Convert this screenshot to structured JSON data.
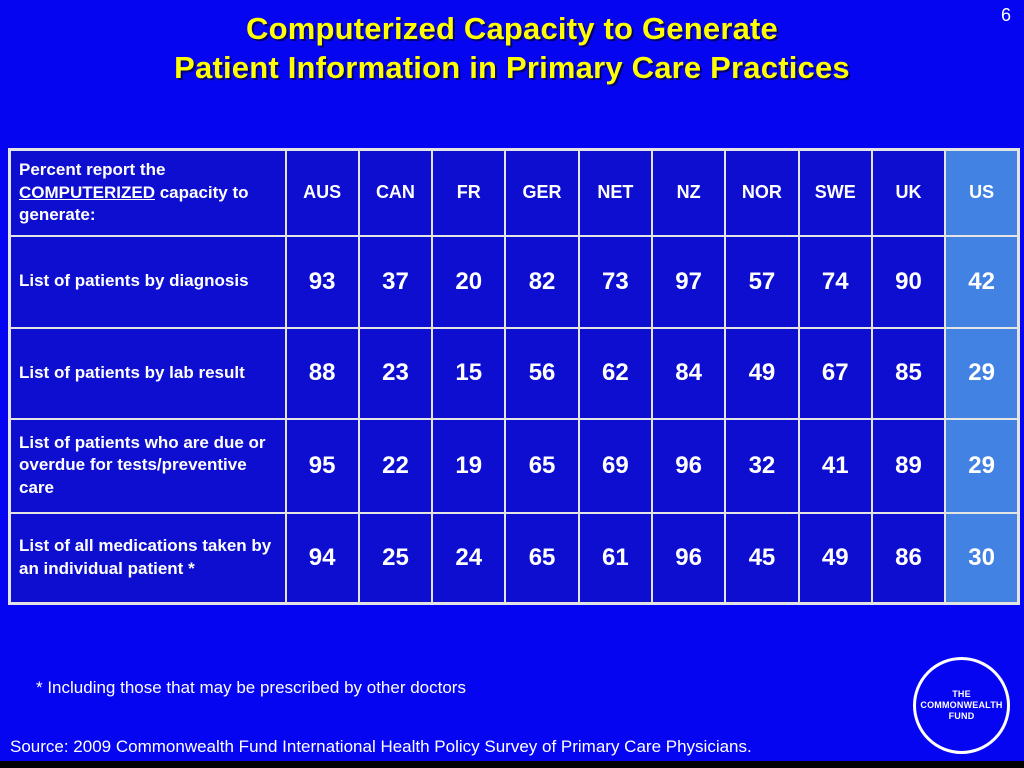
{
  "page_number": "6",
  "title": {
    "line1": "Computerized Capacity to Generate",
    "line2": "Patient Information in Primary Care Practices"
  },
  "table": {
    "caption": {
      "part1": "Percent report the ",
      "underlined": "COMPUTERIZED",
      "part2": " capacity to generate:"
    },
    "columns": [
      "AUS",
      "CAN",
      "FR",
      "GER",
      "NET",
      "NZ",
      "NOR",
      "SWE",
      "UK",
      "US"
    ],
    "rows": [
      {
        "label": "List of patients by diagnosis",
        "values": [
          "93",
          "37",
          "20",
          "82",
          "73",
          "97",
          "57",
          "74",
          "90",
          "42"
        ]
      },
      {
        "label": "List of patients by lab result",
        "values": [
          "88",
          "23",
          "15",
          "56",
          "62",
          "84",
          "49",
          "67",
          "85",
          "29"
        ]
      },
      {
        "label": "List of patients who are due or overdue for tests/preventive care",
        "values": [
          "95",
          "22",
          "19",
          "65",
          "69",
          "96",
          "32",
          "41",
          "89",
          "29"
        ]
      },
      {
        "label": "List of all medications taken by an individual patient *",
        "values": [
          "94",
          "25",
          "24",
          "65",
          "61",
          "96",
          "45",
          "49",
          "86",
          "30"
        ]
      }
    ],
    "highlighted_column": "US"
  },
  "footnote": "* Including those that may be prescribed by other doctors",
  "source": "Source: 2009 Commonwealth Fund International Health Policy Survey of Primary Care Physicians.",
  "logo": {
    "line1": "THE",
    "line2": "COMMONWEALTH",
    "line3": "FUND"
  },
  "colors": {
    "slide_background": "#0505F2",
    "table_cell_blue": "#0E0ED0",
    "us_highlight_blue": "#4182E2",
    "title_yellow": "#FFFF00",
    "grid_border": "#E4E4E4"
  }
}
